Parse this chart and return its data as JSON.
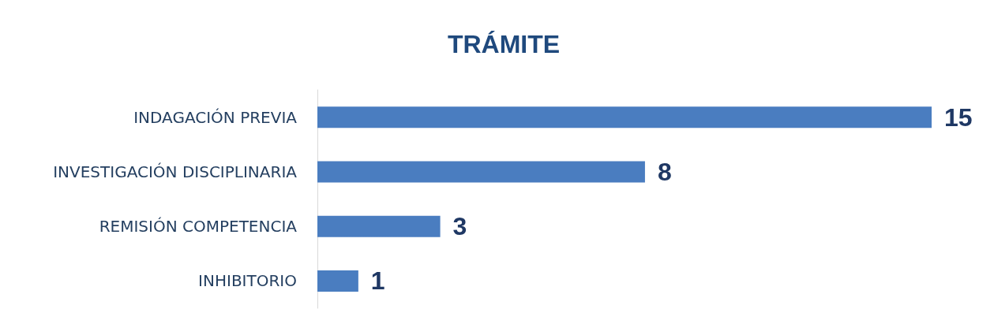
{
  "chart_data": {
    "type": "bar",
    "orientation": "horizontal",
    "title": "TRÁMITE",
    "categories": [
      "INDAGACIÓN PREVIA",
      "INVESTIGACIÓN DISCIPLINARIA",
      "REMISIÓN COMPETENCIA",
      "INHIBITORIO"
    ],
    "values": [
      15,
      8,
      3,
      1
    ],
    "color": "#4a7dc0",
    "data_labels": true
  }
}
